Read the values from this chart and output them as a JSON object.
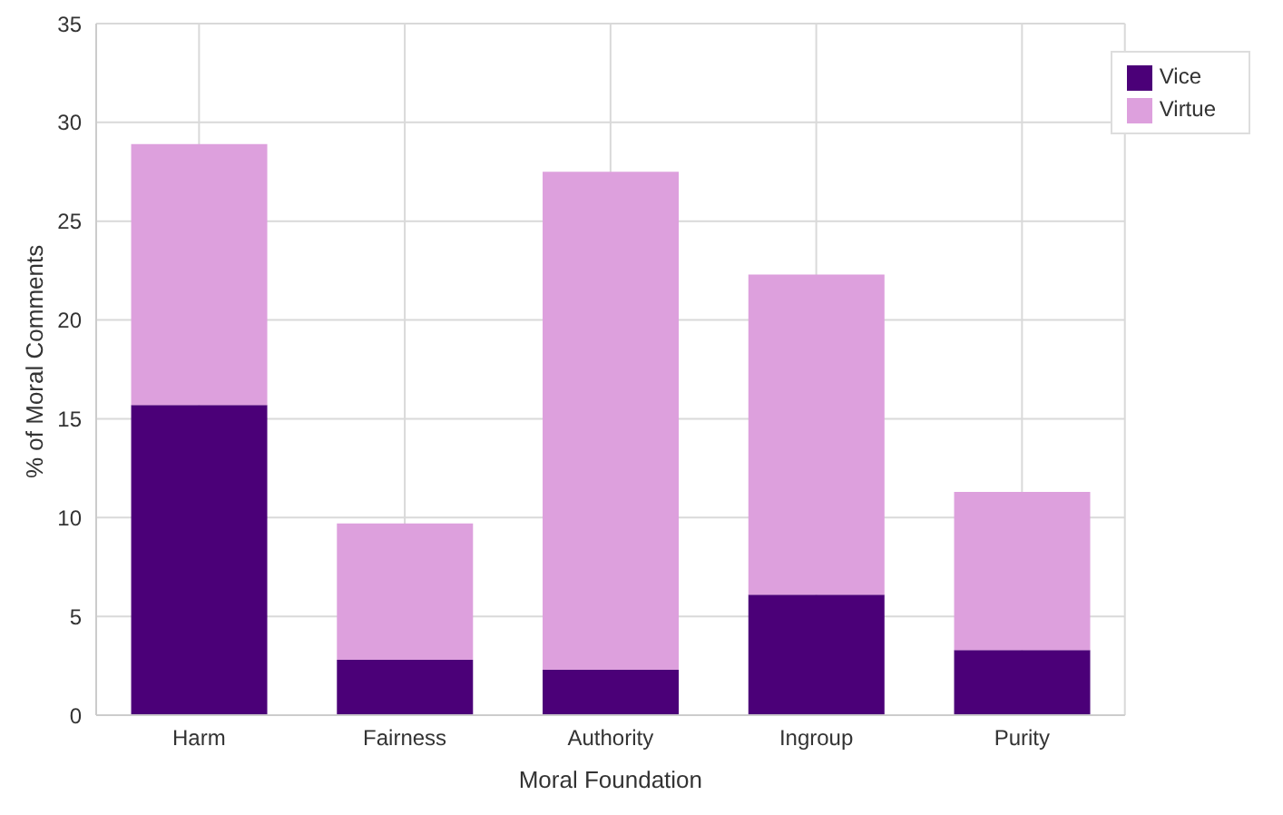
{
  "chart_data": {
    "type": "bar",
    "stacked": true,
    "xlabel": "Moral Foundation",
    "ylabel": "% of Moral Comments",
    "categories": [
      "Harm",
      "Fairness",
      "Authority",
      "Ingroup",
      "Purity"
    ],
    "series": [
      {
        "name": "Vice",
        "color": "#4b0078",
        "values": [
          15.7,
          2.8,
          2.3,
          6.1,
          3.3
        ]
      },
      {
        "name": "Virtue",
        "color": "#dda0dd",
        "values": [
          13.2,
          6.9,
          25.2,
          16.2,
          8.0
        ]
      }
    ],
    "ylim": [
      0,
      35
    ],
    "yticks": [
      0,
      5,
      10,
      15,
      20,
      25,
      30,
      35
    ],
    "grid": true,
    "legend": "top right"
  }
}
